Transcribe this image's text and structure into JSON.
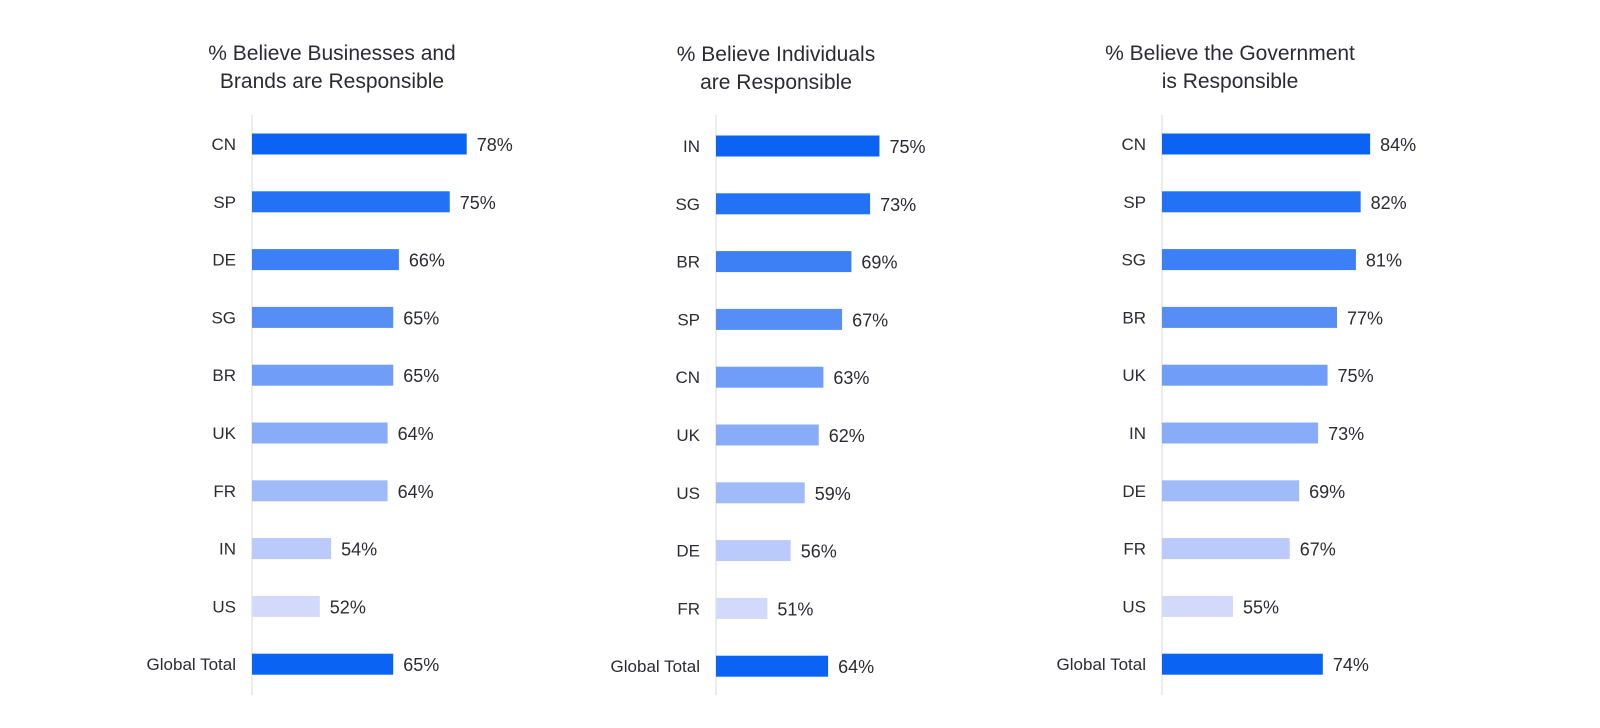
{
  "chart_data": [
    {
      "type": "bar",
      "orientation": "horizontal",
      "title": [
        "% Believe Businesses and",
        "Brands are Responsible"
      ],
      "categories": [
        "CN",
        "SP",
        "DE",
        "SG",
        "BR",
        "UK",
        "FR",
        "IN",
        "US",
        "Global Total"
      ],
      "values": [
        78,
        75,
        66,
        65,
        65,
        64,
        64,
        54,
        52,
        65
      ],
      "value_labels": [
        "78%",
        "75%",
        "66%",
        "65%",
        "65%",
        "64%",
        "64%",
        "54%",
        "52%",
        "65%"
      ],
      "colors": [
        "#0a63f2",
        "#2371f4",
        "#3d7ff5",
        "#568ef6",
        "#6f9df7",
        "#88acf8",
        "#a1bbf9",
        "#bacafa",
        "#d3d9fb",
        "#0a63f2"
      ],
      "grid": false,
      "legend": "none"
    },
    {
      "type": "bar",
      "orientation": "horizontal",
      "title": [
        "% Believe Individuals",
        "are Responsible"
      ],
      "categories": [
        "IN",
        "SG",
        "BR",
        "SP",
        "CN",
        "UK",
        "US",
        "DE",
        "FR",
        "Global Total"
      ],
      "values": [
        75,
        73,
        69,
        67,
        63,
        62,
        59,
        56,
        51,
        64
      ],
      "value_labels": [
        "75%",
        "73%",
        "69%",
        "67%",
        "63%",
        "62%",
        "59%",
        "56%",
        "51%",
        "64%"
      ],
      "colors": [
        "#0a63f2",
        "#2371f4",
        "#3d7ff5",
        "#568ef6",
        "#6f9df7",
        "#88acf8",
        "#a1bbf9",
        "#bacafa",
        "#d3d9fb",
        "#0a63f2"
      ],
      "grid": false,
      "legend": "none"
    },
    {
      "type": "bar",
      "orientation": "horizontal",
      "title": [
        "% Believe the Government",
        "is Responsible"
      ],
      "categories": [
        "CN",
        "SP",
        "SG",
        "BR",
        "UK",
        "IN",
        "DE",
        "FR",
        "US",
        "Global Total"
      ],
      "values": [
        84,
        82,
        81,
        77,
        75,
        73,
        69,
        67,
        55,
        74
      ],
      "value_labels": [
        "84%",
        "82%",
        "81%",
        "77%",
        "75%",
        "73%",
        "69%",
        "67%",
        "55%",
        "74%"
      ],
      "colors": [
        "#0a63f2",
        "#2371f4",
        "#3d7ff5",
        "#568ef6",
        "#6f9df7",
        "#88acf8",
        "#a1bbf9",
        "#bacafa",
        "#d3d9fb",
        "#0a63f2"
      ],
      "grid": false,
      "legend": "none"
    }
  ]
}
